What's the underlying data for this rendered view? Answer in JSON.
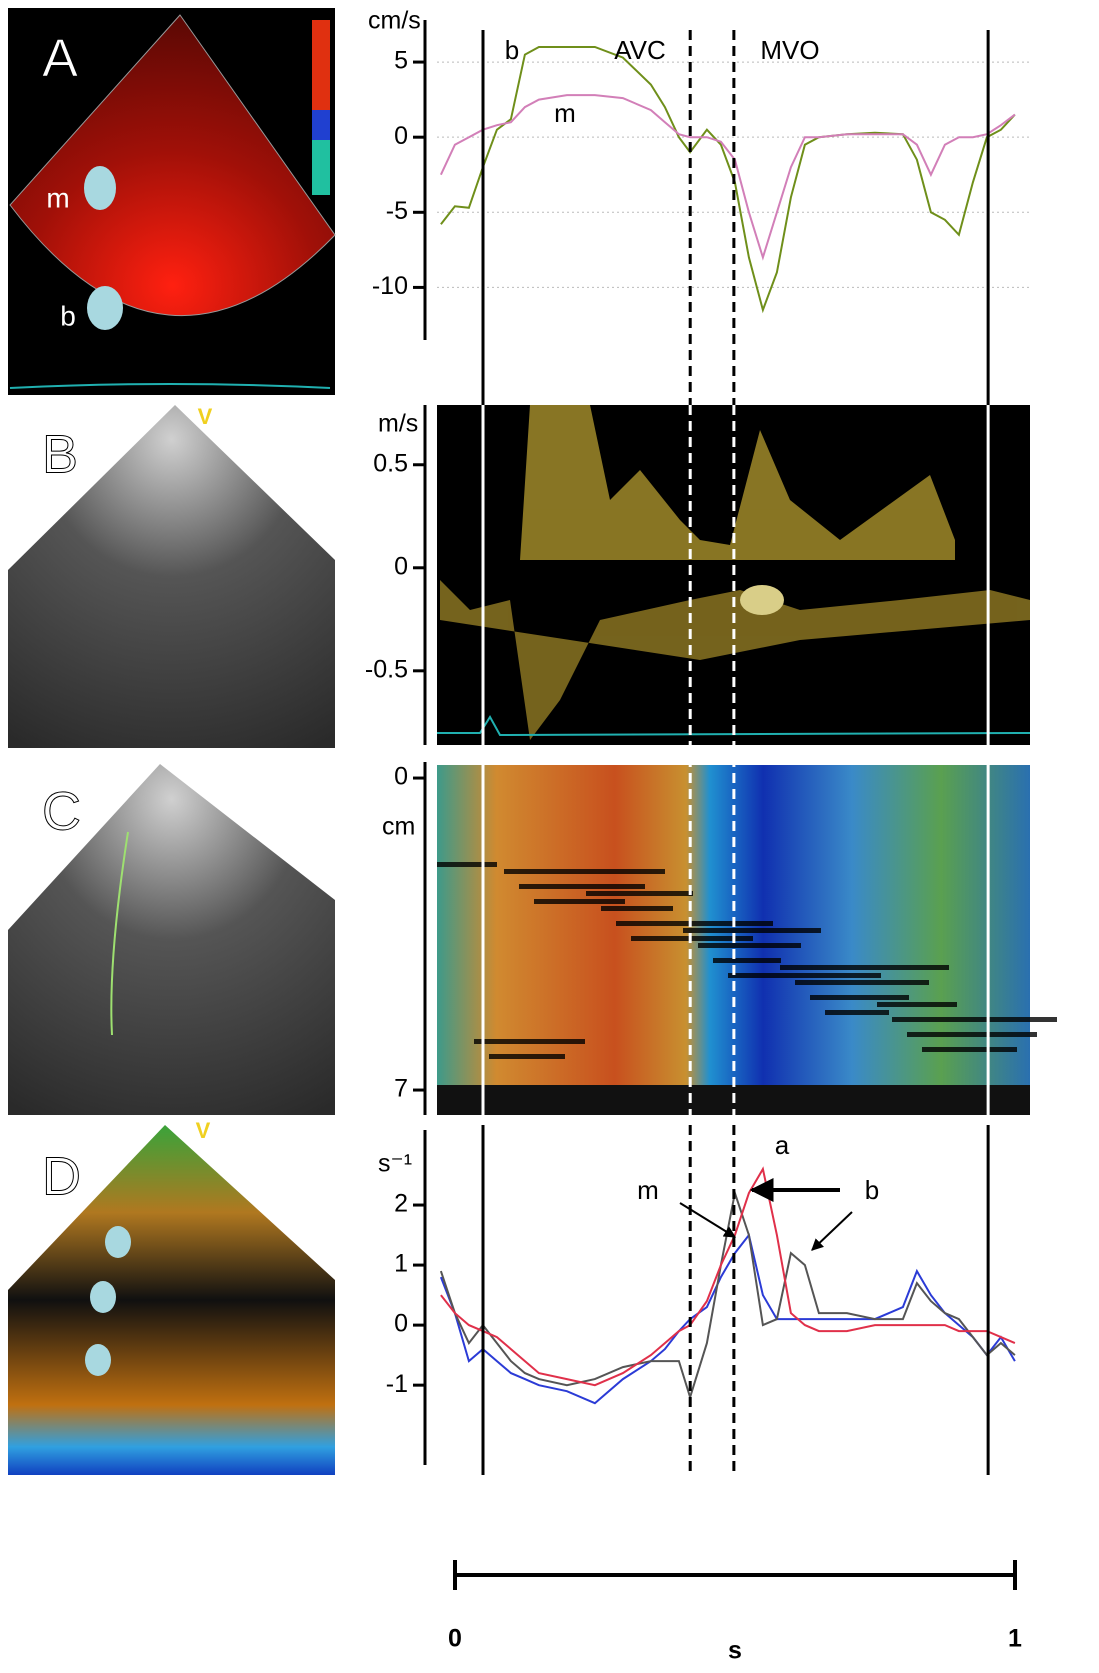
{
  "figure": {
    "images": [
      {
        "label": "A",
        "markers": [
          "m",
          "b"
        ]
      },
      {
        "label": "B",
        "tag": "V"
      },
      {
        "label": "C"
      },
      {
        "label": "D",
        "tag": "V"
      }
    ],
    "events": [
      {
        "t": 0.05,
        "style": "solid"
      },
      {
        "t": 0.42,
        "style": "dashed"
      },
      {
        "t": 0.498,
        "style": "dashed"
      },
      {
        "t": 0.952,
        "style": "solid"
      }
    ],
    "xticks": [
      0,
      1
    ],
    "xlabel": "s"
  },
  "chart_data": [
    {
      "type": "line",
      "ylabel": "cm/s",
      "xlim": [
        -0.032,
        1.027
      ],
      "ylim": [
        -13.5,
        7.8
      ],
      "yticks": [
        5,
        0,
        -5,
        -10
      ],
      "grid": true,
      "annotations": [
        "b",
        "AVC",
        "MVO",
        "m"
      ],
      "x": [
        -0.025,
        0,
        0.025,
        0.05,
        0.075,
        0.1,
        0.125,
        0.15,
        0.2,
        0.25,
        0.3,
        0.35,
        0.375,
        0.4,
        0.42,
        0.45,
        0.475,
        0.5,
        0.525,
        0.55,
        0.575,
        0.6,
        0.625,
        0.65,
        0.7,
        0.75,
        0.8,
        0.825,
        0.85,
        0.875,
        0.9,
        0.925,
        0.95,
        0.975,
        1.0
      ],
      "series": [
        {
          "color": "#6f8f1a",
          "values": [
            -5.8,
            -4.6,
            -4.7,
            -2,
            0.5,
            1.2,
            5.5,
            6,
            6,
            6,
            5.3,
            3.5,
            2,
            0,
            -1,
            0.5,
            -0.5,
            -3,
            -8,
            -11.5,
            -9,
            -4,
            -0.5,
            0,
            0.2,
            0.3,
            0.2,
            -1.5,
            -5,
            -5.5,
            -6.5,
            -3,
            0,
            0.5,
            1.5
          ]
        },
        {
          "color": "#d27fb8",
          "values": [
            -2.5,
            -0.5,
            0,
            0.5,
            0.8,
            1,
            2,
            2.5,
            2.8,
            2.8,
            2.6,
            1.8,
            1.0,
            0.2,
            0,
            0,
            -0.3,
            -1.5,
            -5,
            -8,
            -5,
            -2,
            0,
            0,
            0.2,
            0.2,
            0.2,
            -0.5,
            -2.5,
            -0.5,
            0,
            0,
            0.2,
            0.8,
            1.5
          ]
        }
      ]
    },
    {
      "type": "doppler",
      "ylabel": "m/s",
      "xlim": [
        -0.032,
        1.027
      ],
      "ylim": [
        -0.86,
        0.79
      ],
      "yticks": [
        0.5,
        0,
        -0.5
      ]
    },
    {
      "type": "mmode",
      "ylabel": "cm",
      "xlim": [
        -0.032,
        1.027
      ],
      "ylim": [
        7.56,
        -0.36
      ],
      "yticks": [
        0,
        7
      ]
    },
    {
      "type": "line",
      "ylabel": "s⁻¹",
      "xlim": [
        -0.032,
        1.027
      ],
      "ylim": [
        -2.33,
        3.25
      ],
      "yticks": [
        2,
        1,
        0,
        -1
      ],
      "grid": true,
      "annotations": [
        "a",
        "m",
        "b"
      ],
      "x": [
        -0.025,
        0,
        0.025,
        0.05,
        0.075,
        0.1,
        0.125,
        0.15,
        0.2,
        0.25,
        0.3,
        0.35,
        0.375,
        0.4,
        0.42,
        0.45,
        0.475,
        0.5,
        0.525,
        0.55,
        0.575,
        0.6,
        0.625,
        0.65,
        0.7,
        0.75,
        0.8,
        0.825,
        0.85,
        0.875,
        0.9,
        0.925,
        0.95,
        0.975,
        1.0
      ],
      "series": [
        {
          "color": "#2b3bd6",
          "values": [
            0.8,
            0.2,
            -0.6,
            -0.4,
            -0.6,
            -0.8,
            -0.9,
            -1,
            -1.1,
            -1.3,
            -0.9,
            -0.6,
            -0.4,
            -0.1,
            0.1,
            0.3,
            0.8,
            1.2,
            1.5,
            0.5,
            0.1,
            0.1,
            0.1,
            0.1,
            0.1,
            0.1,
            0.3,
            0.9,
            0.5,
            0.2,
            0,
            -0.2,
            -0.5,
            -0.2,
            -0.6
          ]
        },
        {
          "color": "#555555",
          "values": [
            0.9,
            0.2,
            -0.3,
            0,
            -0.3,
            -0.6,
            -0.8,
            -0.9,
            -1,
            -0.9,
            -0.7,
            -0.6,
            -0.6,
            -0.6,
            -1.2,
            -0.3,
            1,
            2.2,
            1.5,
            0,
            0.1,
            1.2,
            1,
            0.2,
            0.2,
            0.1,
            0.1,
            0.7,
            0.4,
            0.2,
            0.1,
            -0.2,
            -0.5,
            -0.3,
            -0.5
          ]
        },
        {
          "color": "#e0304a",
          "values": [
            0.5,
            0.2,
            0,
            -0.1,
            -0.2,
            -0.4,
            -0.6,
            -0.8,
            -0.9,
            -1,
            -0.8,
            -0.5,
            -0.3,
            -0.1,
            0,
            0.4,
            1,
            1.5,
            2.2,
            2.6,
            1.5,
            0.2,
            0,
            -0.1,
            -0.1,
            0,
            0,
            0,
            0,
            0,
            -0.1,
            -0.1,
            -0.1,
            -0.2,
            -0.3
          ]
        }
      ]
    }
  ]
}
